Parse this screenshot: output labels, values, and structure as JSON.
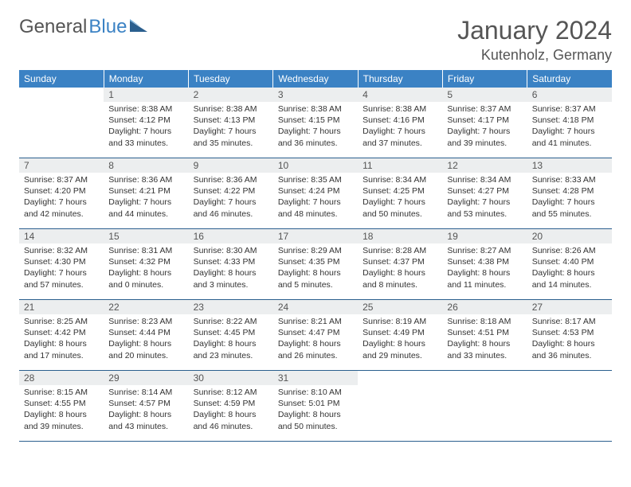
{
  "logo": {
    "part1": "General",
    "part2": "Blue"
  },
  "title": "January 2024",
  "location": "Kutenholz, Germany",
  "colors": {
    "header_bg": "#3b82c4",
    "header_text": "#ffffff",
    "daynum_bg": "#eceeef",
    "text_color": "#333333",
    "border_color": "#2b5f8e",
    "title_color": "#555555"
  },
  "weekdays": [
    "Sunday",
    "Monday",
    "Tuesday",
    "Wednesday",
    "Thursday",
    "Friday",
    "Saturday"
  ],
  "start_offset": 1,
  "days": [
    {
      "n": 1,
      "sunrise": "8:38 AM",
      "sunset": "4:12 PM",
      "dl": "7 hours and 33 minutes."
    },
    {
      "n": 2,
      "sunrise": "8:38 AM",
      "sunset": "4:13 PM",
      "dl": "7 hours and 35 minutes."
    },
    {
      "n": 3,
      "sunrise": "8:38 AM",
      "sunset": "4:15 PM",
      "dl": "7 hours and 36 minutes."
    },
    {
      "n": 4,
      "sunrise": "8:38 AM",
      "sunset": "4:16 PM",
      "dl": "7 hours and 37 minutes."
    },
    {
      "n": 5,
      "sunrise": "8:37 AM",
      "sunset": "4:17 PM",
      "dl": "7 hours and 39 minutes."
    },
    {
      "n": 6,
      "sunrise": "8:37 AM",
      "sunset": "4:18 PM",
      "dl": "7 hours and 41 minutes."
    },
    {
      "n": 7,
      "sunrise": "8:37 AM",
      "sunset": "4:20 PM",
      "dl": "7 hours and 42 minutes."
    },
    {
      "n": 8,
      "sunrise": "8:36 AM",
      "sunset": "4:21 PM",
      "dl": "7 hours and 44 minutes."
    },
    {
      "n": 9,
      "sunrise": "8:36 AM",
      "sunset": "4:22 PM",
      "dl": "7 hours and 46 minutes."
    },
    {
      "n": 10,
      "sunrise": "8:35 AM",
      "sunset": "4:24 PM",
      "dl": "7 hours and 48 minutes."
    },
    {
      "n": 11,
      "sunrise": "8:34 AM",
      "sunset": "4:25 PM",
      "dl": "7 hours and 50 minutes."
    },
    {
      "n": 12,
      "sunrise": "8:34 AM",
      "sunset": "4:27 PM",
      "dl": "7 hours and 53 minutes."
    },
    {
      "n": 13,
      "sunrise": "8:33 AM",
      "sunset": "4:28 PM",
      "dl": "7 hours and 55 minutes."
    },
    {
      "n": 14,
      "sunrise": "8:32 AM",
      "sunset": "4:30 PM",
      "dl": "7 hours and 57 minutes."
    },
    {
      "n": 15,
      "sunrise": "8:31 AM",
      "sunset": "4:32 PM",
      "dl": "8 hours and 0 minutes."
    },
    {
      "n": 16,
      "sunrise": "8:30 AM",
      "sunset": "4:33 PM",
      "dl": "8 hours and 3 minutes."
    },
    {
      "n": 17,
      "sunrise": "8:29 AM",
      "sunset": "4:35 PM",
      "dl": "8 hours and 5 minutes."
    },
    {
      "n": 18,
      "sunrise": "8:28 AM",
      "sunset": "4:37 PM",
      "dl": "8 hours and 8 minutes."
    },
    {
      "n": 19,
      "sunrise": "8:27 AM",
      "sunset": "4:38 PM",
      "dl": "8 hours and 11 minutes."
    },
    {
      "n": 20,
      "sunrise": "8:26 AM",
      "sunset": "4:40 PM",
      "dl": "8 hours and 14 minutes."
    },
    {
      "n": 21,
      "sunrise": "8:25 AM",
      "sunset": "4:42 PM",
      "dl": "8 hours and 17 minutes."
    },
    {
      "n": 22,
      "sunrise": "8:23 AM",
      "sunset": "4:44 PM",
      "dl": "8 hours and 20 minutes."
    },
    {
      "n": 23,
      "sunrise": "8:22 AM",
      "sunset": "4:45 PM",
      "dl": "8 hours and 23 minutes."
    },
    {
      "n": 24,
      "sunrise": "8:21 AM",
      "sunset": "4:47 PM",
      "dl": "8 hours and 26 minutes."
    },
    {
      "n": 25,
      "sunrise": "8:19 AM",
      "sunset": "4:49 PM",
      "dl": "8 hours and 29 minutes."
    },
    {
      "n": 26,
      "sunrise": "8:18 AM",
      "sunset": "4:51 PM",
      "dl": "8 hours and 33 minutes."
    },
    {
      "n": 27,
      "sunrise": "8:17 AM",
      "sunset": "4:53 PM",
      "dl": "8 hours and 36 minutes."
    },
    {
      "n": 28,
      "sunrise": "8:15 AM",
      "sunset": "4:55 PM",
      "dl": "8 hours and 39 minutes."
    },
    {
      "n": 29,
      "sunrise": "8:14 AM",
      "sunset": "4:57 PM",
      "dl": "8 hours and 43 minutes."
    },
    {
      "n": 30,
      "sunrise": "8:12 AM",
      "sunset": "4:59 PM",
      "dl": "8 hours and 46 minutes."
    },
    {
      "n": 31,
      "sunrise": "8:10 AM",
      "sunset": "5:01 PM",
      "dl": "8 hours and 50 minutes."
    }
  ]
}
